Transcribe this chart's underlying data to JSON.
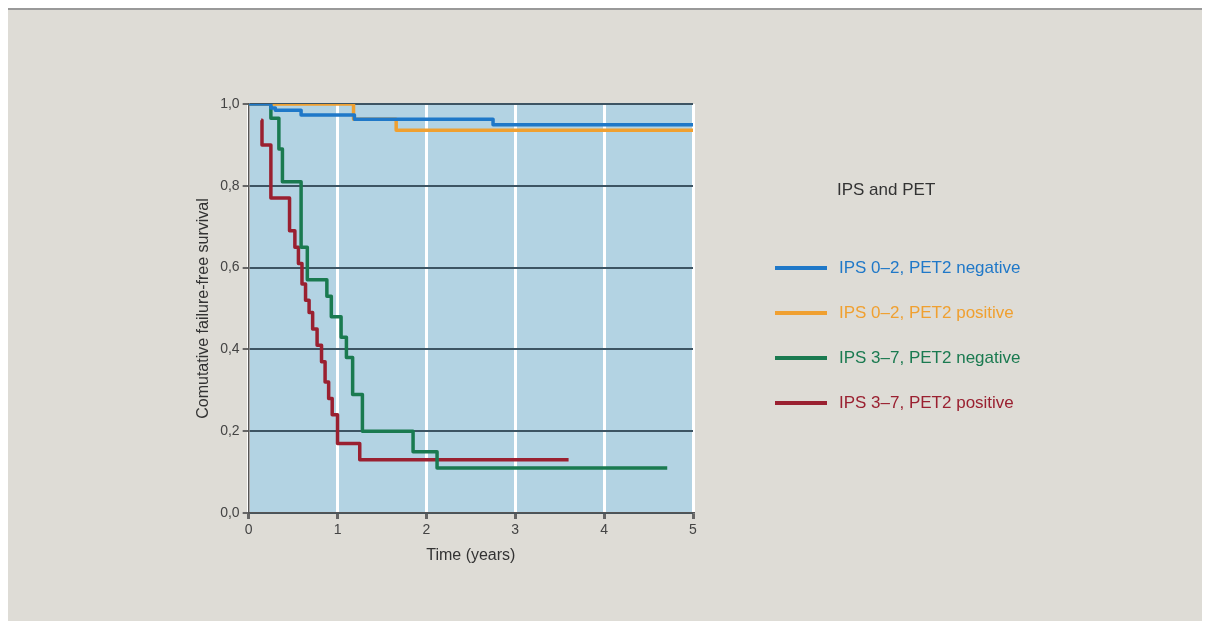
{
  "chart_data": {
    "type": "step",
    "xlabel": "Time (years)",
    "ylabel": "Comutative failure-free survival",
    "legend_title": "IPS and PET",
    "legend": "right",
    "grid": true,
    "marker": "none",
    "line_style": "solid",
    "xlim": [
      0,
      5
    ],
    "xticks": [
      0,
      1,
      2,
      3,
      4,
      5
    ],
    "ylim": [
      0,
      1
    ],
    "yticks": [
      {
        "value": 0,
        "label": "0,0"
      },
      {
        "value": 0.2,
        "label": "0,2"
      },
      {
        "value": 0.4,
        "label": "0,4"
      },
      {
        "value": 0.6,
        "label": "0,6"
      },
      {
        "value": 0.8,
        "label": "0,8"
      },
      {
        "value": 1,
        "label": "1,0"
      }
    ],
    "series": [
      {
        "name": "IPS 0–2, PET2 negative",
        "color": "#1f78c8",
        "x": [
          0,
          0.25,
          0.3,
          0.59,
          1.19,
          2.75,
          5
        ],
        "values": [
          1,
          0.99,
          0.985,
          0.973,
          0.963,
          0.949,
          0.949
        ]
      },
      {
        "name": "IPS 0–2, PET2 positive",
        "color": "#f0a030",
        "x": [
          0,
          1.18,
          1.66,
          5
        ],
        "values": [
          1,
          0.963,
          0.936,
          0.936
        ]
      },
      {
        "name": "IPS 3–7, PET2 negative",
        "color": "#1a7a50",
        "x": [
          0,
          0.25,
          0.34,
          0.38,
          0.59,
          0.66,
          0.88,
          0.93,
          1.04,
          1.1,
          1.17,
          1.28,
          1.85,
          2.12,
          4.71
        ],
        "values": [
          1,
          0.965,
          0.89,
          0.81,
          0.65,
          0.57,
          0.53,
          0.48,
          0.43,
          0.38,
          0.29,
          0.2,
          0.15,
          0.11,
          0.11
        ]
      },
      {
        "name": "IPS 3–7, PET2 positive",
        "color": "#9a2030",
        "x": [
          0.14,
          0.15,
          0.25,
          0.46,
          0.52,
          0.56,
          0.6,
          0.64,
          0.68,
          0.72,
          0.77,
          0.82,
          0.86,
          0.9,
          0.94,
          1,
          1.25,
          3.6
        ],
        "values": [
          0.96,
          0.9,
          0.77,
          0.69,
          0.65,
          0.61,
          0.56,
          0.52,
          0.49,
          0.45,
          0.41,
          0.37,
          0.32,
          0.28,
          0.24,
          0.17,
          0.13,
          0.13
        ]
      }
    ]
  }
}
